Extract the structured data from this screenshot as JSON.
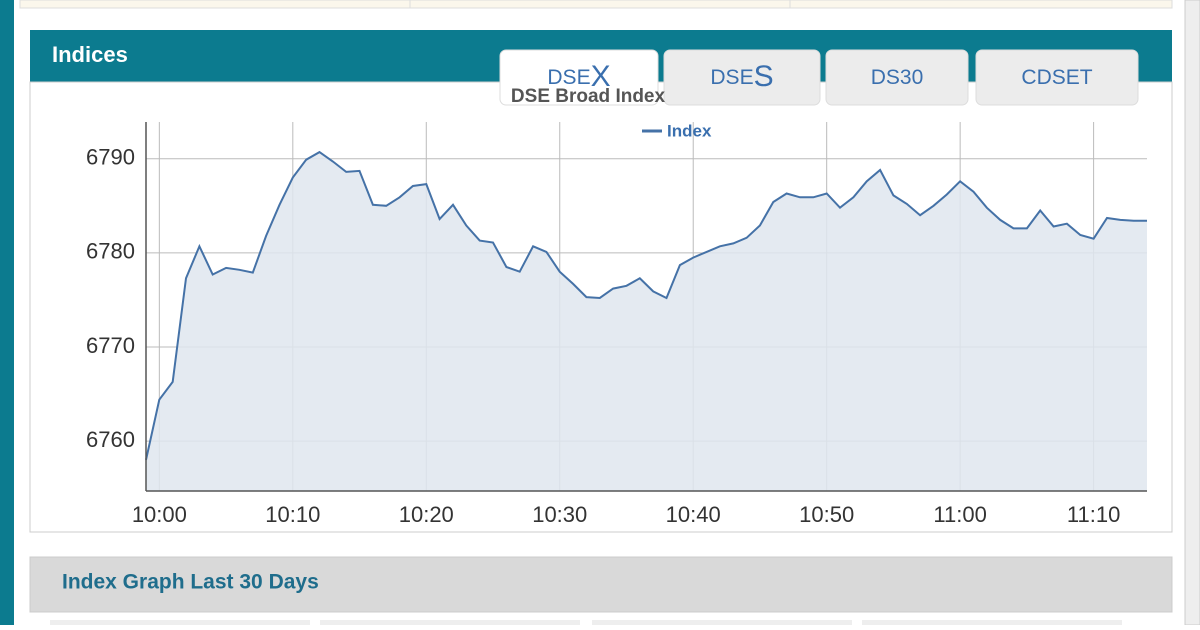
{
  "header": {
    "title": "Indices"
  },
  "tabs": [
    [
      "DSE",
      "X"
    ],
    [
      "DSE",
      "S"
    ],
    [
      "DS30"
    ],
    [
      "CDSET"
    ]
  ],
  "chart_data": {
    "type": "line",
    "title": "DSE Broad Index",
    "x": [
      "09:59",
      "10:00",
      "10:01",
      "10:02",
      "10:03",
      "10:04",
      "10:05",
      "10:06",
      "10:07",
      "10:08",
      "10:09",
      "10:10",
      "10:11",
      "10:12",
      "10:13",
      "10:14",
      "10:15",
      "10:16",
      "10:17",
      "10:18",
      "10:19",
      "10:20",
      "10:21",
      "10:22",
      "10:23",
      "10:24",
      "10:25",
      "10:26",
      "10:27",
      "10:28",
      "10:29",
      "10:30",
      "10:31",
      "10:32",
      "10:33",
      "10:34",
      "10:35",
      "10:36",
      "10:37",
      "10:38",
      "10:39",
      "10:40",
      "10:41",
      "10:42",
      "10:43",
      "10:44",
      "10:45",
      "10:46",
      "10:47",
      "10:48",
      "10:49",
      "10:50",
      "10:51",
      "10:52",
      "10:53",
      "10:54",
      "10:55",
      "10:56",
      "10:57",
      "10:58",
      "10:59",
      "11:00",
      "11:01",
      "11:02",
      "11:03",
      "11:04",
      "11:05",
      "11:06",
      "11:07",
      "11:08",
      "11:09",
      "11:10",
      "11:11",
      "11:12",
      "11:13",
      "11:14"
    ],
    "series": [
      {
        "name": "Index",
        "color": "#4572a7",
        "fill": "#dfe6ef",
        "values": [
          6758,
          6764.4,
          6766.3,
          6777.3,
          6780.7,
          6777.7,
          6778.4,
          6778.2,
          6777.9,
          6781.8,
          6785.1,
          6788,
          6789.9,
          6790.7,
          6789.7,
          6788.6,
          6788.7,
          6785.1,
          6785,
          6785.9,
          6787.1,
          6787.3,
          6783.6,
          6785.1,
          6782.9,
          6781.3,
          6781.1,
          6778.5,
          6778,
          6780.7,
          6780.1,
          6778,
          6776.7,
          6775.3,
          6775.2,
          6776.2,
          6776.5,
          6777.3,
          6775.9,
          6775.2,
          6778.7,
          6779.5,
          6780.1,
          6780.7,
          6781,
          6781.6,
          6782.9,
          6785.4,
          6786.3,
          6785.9,
          6785.9,
          6786.3,
          6784.8,
          6785.9,
          6787.6,
          6788.8,
          6786.1,
          6785.2,
          6784,
          6785,
          6786.2,
          6787.6,
          6786.5,
          6784.8,
          6783.5,
          6782.6,
          6782.6,
          6784.5,
          6782.8,
          6783.1,
          6781.9,
          6781.5,
          6783.7,
          6783.5,
          6783.4,
          6783.4
        ]
      }
    ],
    "xlim": [
      "09:59",
      "11:14"
    ],
    "xticks": [
      "10:00",
      "10:10",
      "10:20",
      "10:30",
      "10:40",
      "10:50",
      "11:00",
      "11:10"
    ],
    "ylim": [
      6754.7,
      6793.9
    ],
    "yticks": [
      6760,
      6770,
      6780,
      6790
    ],
    "grid": true
  },
  "section": {
    "title": "Index Graph Last 30 Days"
  }
}
